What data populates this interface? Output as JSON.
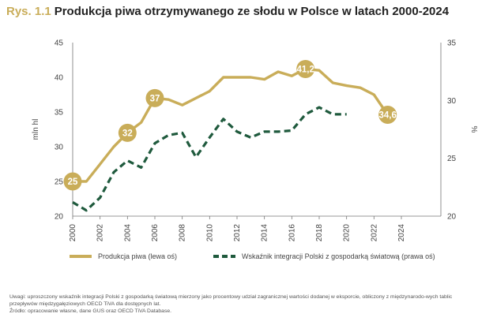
{
  "figure": {
    "label": "Rys. 1.1",
    "title": "Produkcja piwa otrzymywanego ze słodu w Polsce w latach 2000-2024"
  },
  "chart_data": {
    "type": "line",
    "x": [
      2000,
      2001,
      2002,
      2003,
      2004,
      2005,
      2006,
      2007,
      2008,
      2009,
      2010,
      2011,
      2012,
      2013,
      2014,
      2015,
      2016,
      2017,
      2018,
      2019,
      2020,
      2021,
      2022,
      2023,
      2024
    ],
    "x_ticks": [
      2000,
      2002,
      2004,
      2006,
      2008,
      2010,
      2012,
      2014,
      2016,
      2018,
      2020,
      2022,
      2024
    ],
    "series": [
      {
        "name": "Produkcja piwa (lewa oś)",
        "axis": "left",
        "color": "#c9ad59",
        "style": "solid",
        "values": [
          25,
          25,
          27.5,
          30,
          32,
          33.5,
          37,
          36.8,
          36,
          37,
          38,
          40,
          40,
          40,
          39.7,
          40.8,
          40.2,
          41.2,
          41,
          39.2,
          38.8,
          38.5,
          37.5,
          34.6,
          null
        ]
      },
      {
        "name": "Wskaźnik integracji Polski z gospodarką światową (prawa oś)",
        "axis": "right",
        "color": "#1f5a3d",
        "style": "dashed",
        "values": [
          21.2,
          20.5,
          21.6,
          23.8,
          24.8,
          24.2,
          26.3,
          27,
          27.2,
          25.1,
          26.8,
          28.4,
          27.3,
          26.8,
          27.3,
          27.3,
          27.4,
          28.8,
          29.4,
          28.8,
          28.8,
          null,
          null,
          null,
          null
        ]
      }
    ],
    "annotations": [
      {
        "x": 2000,
        "label": "25"
      },
      {
        "x": 2004,
        "label": "32"
      },
      {
        "x": 2006,
        "label": "37"
      },
      {
        "x": 2017,
        "label": "41,2"
      },
      {
        "x": 2023,
        "label": "34,6"
      }
    ],
    "ylabel_left": "mln hl",
    "ylabel_right": "%",
    "ylim_left": [
      20,
      45
    ],
    "yticks_left": [
      20,
      25,
      30,
      35,
      40,
      45
    ],
    "ylim_right": [
      20,
      35
    ],
    "yticks_right": [
      20,
      25,
      30,
      35
    ],
    "grid": false,
    "legend_position": "bottom"
  },
  "notes": {
    "uwagi": "Uwagi: uproszczony wskaźnik integracji Polski z gospodarką światową mierzony jako procentowy udział zagranicznej wartości dodanej w eksporcie, obliczony z międzynarodo-wych tablic przepływów międzygałęziowych OECD TiVA dla dostępnych lat.",
    "zrodlo": "Źródło: opracowanie własne, dane GUS oraz OECD TiVA Database."
  }
}
